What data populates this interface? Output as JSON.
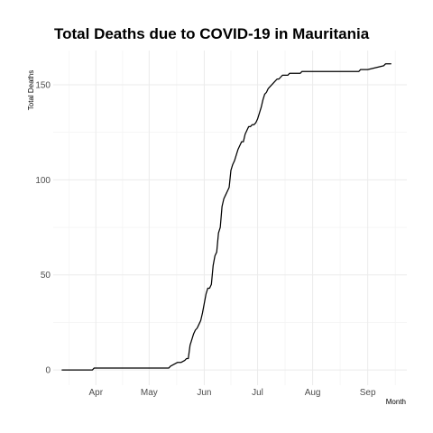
{
  "chart_data": {
    "type": "line",
    "title": "Total Deaths due to COVID-19 in Mauritania",
    "xlabel": "Month",
    "ylabel": "Total Deaths",
    "grid": true,
    "legend": "none",
    "line_color": "#000000",
    "xlim": [
      "2020-03-08",
      "2020-09-23"
    ],
    "ylim": [
      -8,
      168
    ],
    "x_ticks": [
      {
        "date": "2020-04-01",
        "label": "Apr"
      },
      {
        "date": "2020-05-01",
        "label": "May"
      },
      {
        "date": "2020-06-01",
        "label": "Jun"
      },
      {
        "date": "2020-07-01",
        "label": "Jul"
      },
      {
        "date": "2020-08-01",
        "label": "Aug"
      },
      {
        "date": "2020-09-01",
        "label": "Sep"
      }
    ],
    "y_ticks": [
      {
        "value": 0,
        "label": "0"
      },
      {
        "value": 50,
        "label": "50"
      },
      {
        "value": 100,
        "label": "100"
      },
      {
        "value": 150,
        "label": "150"
      }
    ],
    "series": [
      {
        "x": [
          "2020-03-13",
          "2020-03-30",
          "2020-03-31",
          "2020-05-12",
          "2020-05-13",
          "2020-05-15",
          "2020-05-17",
          "2020-05-19",
          "2020-05-21",
          "2020-05-22",
          "2020-05-23",
          "2020-05-24",
          "2020-05-25",
          "2020-05-26",
          "2020-05-27",
          "2020-05-28",
          "2020-05-29",
          "2020-05-30",
          "2020-05-31",
          "2020-06-01",
          "2020-06-02",
          "2020-06-03",
          "2020-06-04",
          "2020-06-05",
          "2020-06-06",
          "2020-06-07",
          "2020-06-08",
          "2020-06-09",
          "2020-06-10",
          "2020-06-11",
          "2020-06-12",
          "2020-06-13",
          "2020-06-14",
          "2020-06-15",
          "2020-06-16",
          "2020-06-17",
          "2020-06-18",
          "2020-06-19",
          "2020-06-20",
          "2020-06-21",
          "2020-06-22",
          "2020-06-23",
          "2020-06-24",
          "2020-06-25",
          "2020-06-26",
          "2020-06-27",
          "2020-06-28",
          "2020-06-29",
          "2020-06-30",
          "2020-07-01",
          "2020-07-02",
          "2020-07-03",
          "2020-07-04",
          "2020-07-05",
          "2020-07-06",
          "2020-07-07",
          "2020-07-08",
          "2020-07-09",
          "2020-07-10",
          "2020-07-11",
          "2020-07-12",
          "2020-07-13",
          "2020-07-14",
          "2020-07-15",
          "2020-07-16",
          "2020-07-17",
          "2020-07-18",
          "2020-07-19",
          "2020-07-20",
          "2020-07-23",
          "2020-07-24",
          "2020-07-25",
          "2020-07-26",
          "2020-07-29",
          "2020-07-30",
          "2020-08-01",
          "2020-08-10",
          "2020-08-27",
          "2020-08-28",
          "2020-09-01",
          "2020-09-10",
          "2020-09-11",
          "2020-09-14"
        ],
        "y": [
          0,
          0,
          1,
          1,
          2,
          3,
          4,
          4,
          5,
          6,
          6,
          13,
          16,
          19,
          21,
          22,
          24,
          26,
          30,
          35,
          40,
          43,
          43,
          45,
          55,
          60,
          62,
          72,
          75,
          86,
          90,
          92,
          94,
          96,
          105,
          108,
          110,
          113,
          116,
          118,
          120,
          120,
          124,
          126,
          128,
          128,
          129,
          129,
          130,
          132,
          135,
          138,
          142,
          145,
          146,
          148,
          149,
          150,
          151,
          152,
          153,
          153,
          154,
          155,
          155,
          155,
          155,
          156,
          156,
          156,
          156,
          156,
          157,
          157,
          157,
          157,
          157,
          157,
          158,
          158,
          160,
          161,
          161
        ]
      }
    ]
  }
}
